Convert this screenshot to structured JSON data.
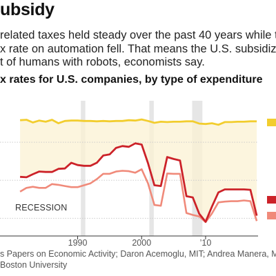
{
  "headline": "ubsidy",
  "dek": [
    "related taxes held steady over the past 40 years while t",
    "x rate on automation fell. That means the U.S. subsidize",
    "t of humans with robots, economists say."
  ],
  "source_lines": [
    "s Papers on Economic Activity; Daron Acemoglu, MIT; Andrea Manera, MIT;",
    "Boston University"
  ],
  "colors": {
    "labor": "#f2cd2e",
    "band": "#fbf1d3",
    "software": "#cc2229",
    "equipment": "#f08a7a",
    "recession": "#e6e6e6",
    "grid": "#cccccc"
  },
  "chart_data": {
    "type": "line",
    "title": "x rates for U.S. companies, by type of expenditure",
    "recession_label": "RECESSION",
    "x_ticks": [
      1990,
      2000,
      "’10"
    ],
    "recessions": [
      [
        1990.5,
        1991.2
      ],
      [
        2001.2,
        2001.9
      ],
      [
        2007.9,
        2009.5
      ]
    ],
    "fill_between": [
      "labor",
      "software"
    ],
    "series": [
      {
        "key": "labor",
        "x": [
          1981,
          1982,
          1983,
          1984,
          1985,
          1986,
          1987,
          1988,
          1989,
          1990,
          1991,
          1992,
          1993,
          1994,
          1995,
          1996,
          1997,
          1998,
          1999,
          2000,
          2001,
          2002,
          2003,
          2004,
          2005,
          2006,
          2007,
          2008,
          2009,
          2010,
          2011,
          2012,
          2013,
          2014,
          2015,
          2016,
          2017,
          2018
        ],
        "y": [
          25.8,
          25.9,
          25.2,
          25.7,
          25.4,
          25.9,
          25.0,
          25.6,
          25.7,
          25.7,
          25.6,
          25.6,
          25.5,
          25.6,
          25.5,
          25.6,
          25.6,
          25.8,
          25.7,
          26.0,
          25.6,
          25.1,
          25.4,
          25.3,
          25.4,
          25.4,
          25.5,
          25.5,
          24.9,
          24.8,
          25.0,
          24.6,
          25.3,
          25.3,
          25.4,
          25.4,
          25.5,
          25.5
        ]
      },
      {
        "key": "software",
        "x": [
          1981,
          1982,
          1983,
          1984,
          1985,
          1986,
          1987,
          1988,
          1989,
          1990,
          1991,
          1992,
          1993,
          1994,
          1995,
          1996,
          1997,
          1998,
          1999,
          2000,
          2001,
          2002,
          2003,
          2004,
          2005,
          2006,
          2007,
          2008,
          2009,
          2010,
          2011,
          2012,
          2013,
          2014,
          2015,
          2016,
          2017,
          2018
        ],
        "y": [
          10.9,
          10.8,
          11.6,
          12.3,
          12.2,
          12.2,
          13.0,
          13.1,
          14.6,
          14.0,
          13.8,
          13.8,
          14.6,
          16.5,
          16.8,
          18.5,
          19.0,
          18.8,
          19.7,
          19.4,
          14.5,
          8.7,
          8.5,
          16.1,
          15.6,
          15.2,
          5.8,
          5.5,
          1.2,
          -0.9,
          3.1,
          6.8,
          7.6,
          7.6,
          7.6,
          7.6,
          7.5,
          0.7
        ]
      },
      {
        "key": "equipment",
        "x": [
          1981,
          1982,
          1983,
          1984,
          1985,
          1986,
          1987,
          1988,
          1989,
          1990,
          1991,
          1992,
          1993,
          1994,
          1995,
          1996,
          1997,
          1998,
          1999,
          2000,
          2001,
          2002,
          2003,
          2004,
          2005,
          2006,
          2007,
          2008,
          2009,
          2010,
          2011,
          2012,
          2013,
          2014,
          2015,
          2016,
          2017,
          2018
        ],
        "y": [
          7.0,
          8.0,
          8.3,
          8.0,
          8.0,
          9.0,
          8.8,
          8.5,
          8.2,
          8.2,
          8.7,
          9.2,
          10.3,
          11.7,
          11.7,
          12.3,
          12.5,
          12.4,
          12.0,
          12.9,
          9.2,
          3.5,
          3.3,
          11.8,
          11.7,
          11.7,
          1.4,
          0.9,
          0.5,
          -1.0,
          1.3,
          4.2,
          4.4,
          4.5,
          4.5,
          4.7,
          4.5,
          -0.7
        ]
      }
    ]
  }
}
